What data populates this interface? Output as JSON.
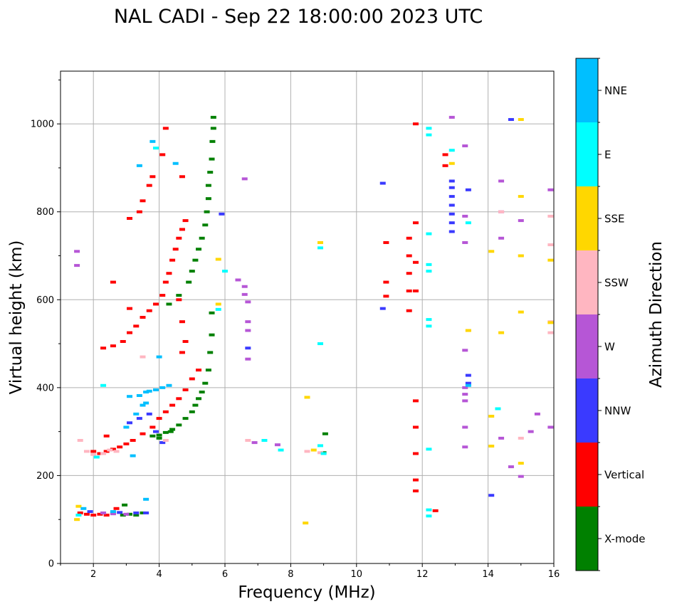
{
  "chart_data": {
    "type": "scatter",
    "title": "NAL CADI - Sep 22 18:00:00 2023 UTC",
    "xlabel": "Frequency (MHz)",
    "ylabel": "Virtual height (km)",
    "xlim": [
      1,
      16
    ],
    "ylim": [
      0,
      1120
    ],
    "xticks": [
      2,
      4,
      6,
      8,
      10,
      12,
      14,
      16
    ],
    "yticks": [
      0,
      200,
      400,
      600,
      800,
      1000
    ],
    "xtick_labels": [
      "2",
      "4",
      "6",
      "8",
      "10",
      "12",
      "14",
      "16"
    ],
    "ytick_labels": [
      "0",
      "200",
      "400",
      "600",
      "800",
      "1000"
    ],
    "grid": true,
    "colorbar": {
      "label": "Azimuth Direction",
      "categories": [
        {
          "name": "X-mode",
          "color": "#008000"
        },
        {
          "name": "Vertical",
          "color": "#ff0000"
        },
        {
          "name": "NNW",
          "color": "#3a3aff"
        },
        {
          "name": "W",
          "color": "#b656d6"
        },
        {
          "name": "SSW",
          "color": "#ffb6c1"
        },
        {
          "name": "SSE",
          "color": "#ffd700"
        },
        {
          "name": "E",
          "color": "#00ffff"
        },
        {
          "name": "NNE",
          "color": "#00bfff"
        }
      ]
    },
    "series": [
      {
        "name": "X-mode",
        "color": "#008000",
        "points": [
          [
            2.9,
            110
          ],
          [
            3.1,
            112
          ],
          [
            3.3,
            110
          ],
          [
            3.5,
            115
          ],
          [
            2.95,
            133
          ],
          [
            3.8,
            290
          ],
          [
            4.0,
            292
          ],
          [
            4.2,
            298
          ],
          [
            4.4,
            305
          ],
          [
            4.6,
            315
          ],
          [
            4.8,
            330
          ],
          [
            5.0,
            345
          ],
          [
            5.1,
            360
          ],
          [
            5.2,
            375
          ],
          [
            5.3,
            390
          ],
          [
            5.4,
            410
          ],
          [
            5.5,
            440
          ],
          [
            5.55,
            480
          ],
          [
            5.6,
            520
          ],
          [
            5.6,
            570
          ],
          [
            4.3,
            590
          ],
          [
            4.6,
            610
          ],
          [
            4.9,
            640
          ],
          [
            5.0,
            665
          ],
          [
            5.1,
            690
          ],
          [
            5.2,
            715
          ],
          [
            5.3,
            740
          ],
          [
            5.4,
            770
          ],
          [
            5.45,
            800
          ],
          [
            5.5,
            830
          ],
          [
            5.5,
            860
          ],
          [
            5.55,
            890
          ],
          [
            5.6,
            920
          ],
          [
            5.62,
            960
          ],
          [
            5.65,
            990
          ],
          [
            5.65,
            1015
          ],
          [
            9.05,
            295
          ],
          [
            9.0,
            252
          ],
          [
            4.0,
            285
          ],
          [
            4.35,
            300
          ]
        ]
      },
      {
        "name": "Vertical",
        "color": "#ff0000",
        "points": [
          [
            1.6,
            115
          ],
          [
            1.8,
            112
          ],
          [
            2.0,
            110
          ],
          [
            2.2,
            112
          ],
          [
            2.4,
            110
          ],
          [
            2.6,
            115
          ],
          [
            2.7,
            125
          ],
          [
            2.0,
            255
          ],
          [
            2.2,
            250
          ],
          [
            2.4,
            255
          ],
          [
            2.6,
            260
          ],
          [
            2.8,
            265
          ],
          [
            3.0,
            272
          ],
          [
            3.2,
            280
          ],
          [
            3.5,
            295
          ],
          [
            3.8,
            310
          ],
          [
            4.0,
            330
          ],
          [
            4.2,
            345
          ],
          [
            4.4,
            360
          ],
          [
            4.6,
            375
          ],
          [
            4.8,
            395
          ],
          [
            5.0,
            420
          ],
          [
            5.2,
            440
          ],
          [
            2.3,
            490
          ],
          [
            2.6,
            495
          ],
          [
            2.9,
            505
          ],
          [
            3.1,
            525
          ],
          [
            3.3,
            540
          ],
          [
            3.5,
            560
          ],
          [
            3.7,
            575
          ],
          [
            3.9,
            590
          ],
          [
            4.1,
            610
          ],
          [
            4.2,
            640
          ],
          [
            4.3,
            660
          ],
          [
            4.4,
            690
          ],
          [
            4.5,
            715
          ],
          [
            4.6,
            740
          ],
          [
            4.7,
            760
          ],
          [
            4.8,
            780
          ],
          [
            3.4,
            800
          ],
          [
            3.5,
            825
          ],
          [
            3.7,
            860
          ],
          [
            3.8,
            880
          ],
          [
            4.1,
            930
          ],
          [
            4.2,
            990
          ],
          [
            3.1,
            785
          ],
          [
            4.6,
            600
          ],
          [
            4.7,
            550
          ],
          [
            4.8,
            505
          ],
          [
            4.7,
            480
          ],
          [
            2.6,
            640
          ],
          [
            11.6,
            575
          ],
          [
            11.6,
            620
          ],
          [
            11.6,
            660
          ],
          [
            11.6,
            700
          ],
          [
            11.6,
            740
          ],
          [
            10.9,
            640
          ],
          [
            10.9,
            730
          ],
          [
            10.9,
            608
          ],
          [
            11.8,
            620
          ],
          [
            11.8,
            685
          ],
          [
            11.8,
            775
          ],
          [
            11.8,
            370
          ],
          [
            11.8,
            310
          ],
          [
            11.8,
            250
          ],
          [
            11.8,
            190
          ],
          [
            11.8,
            165
          ],
          [
            11.8,
            1000
          ],
          [
            12.4,
            120
          ],
          [
            12.7,
            930
          ],
          [
            12.7,
            905
          ],
          [
            3.1,
            580
          ],
          [
            2.4,
            290
          ],
          [
            4.7,
            880
          ]
        ]
      },
      {
        "name": "NNW",
        "color": "#3a3aff",
        "points": [
          [
            1.9,
            118
          ],
          [
            2.8,
            116
          ],
          [
            3.3,
            115
          ],
          [
            3.6,
            115
          ],
          [
            3.1,
            320
          ],
          [
            3.4,
            330
          ],
          [
            3.7,
            340
          ],
          [
            3.9,
            300
          ],
          [
            4.1,
            275
          ],
          [
            12.9,
            755
          ],
          [
            12.9,
            775
          ],
          [
            12.9,
            795
          ],
          [
            12.9,
            815
          ],
          [
            12.9,
            835
          ],
          [
            12.9,
            855
          ],
          [
            12.9,
            870
          ],
          [
            13.4,
            410
          ],
          [
            13.4,
            428
          ],
          [
            13.4,
            850
          ],
          [
            10.8,
            580
          ],
          [
            10.8,
            865
          ],
          [
            14.1,
            155
          ],
          [
            14.7,
            1010
          ],
          [
            6.7,
            490
          ],
          [
            5.9,
            795
          ]
        ]
      },
      {
        "name": "W",
        "color": "#b656d6",
        "points": [
          [
            1.5,
            710
          ],
          [
            1.5,
            678
          ],
          [
            2.3,
            115
          ],
          [
            2.6,
            113
          ],
          [
            3.0,
            112
          ],
          [
            6.4,
            645
          ],
          [
            6.6,
            630
          ],
          [
            6.6,
            612
          ],
          [
            6.7,
            595
          ],
          [
            6.7,
            550
          ],
          [
            6.7,
            530
          ],
          [
            6.7,
            465
          ],
          [
            6.9,
            275
          ],
          [
            7.6,
            270
          ],
          [
            6.6,
            875
          ],
          [
            12.9,
            1015
          ],
          [
            13.3,
            950
          ],
          [
            13.3,
            790
          ],
          [
            13.3,
            730
          ],
          [
            13.3,
            485
          ],
          [
            13.3,
            400
          ],
          [
            13.3,
            385
          ],
          [
            13.3,
            370
          ],
          [
            13.3,
            310
          ],
          [
            13.3,
            265
          ],
          [
            14.4,
            870
          ],
          [
            14.4,
            800
          ],
          [
            14.4,
            740
          ],
          [
            14.4,
            285
          ],
          [
            14.7,
            220
          ],
          [
            15.0,
            780
          ],
          [
            15.0,
            198
          ],
          [
            15.3,
            300
          ],
          [
            15.5,
            340
          ],
          [
            15.9,
            850
          ],
          [
            15.9,
            310
          ]
        ]
      },
      {
        "name": "SSW",
        "color": "#ffb6c1",
        "points": [
          [
            1.6,
            280
          ],
          [
            1.8,
            255
          ],
          [
            2.0,
            248
          ],
          [
            2.3,
            250
          ],
          [
            2.5,
            258
          ],
          [
            2.7,
            255
          ],
          [
            3.5,
            470
          ],
          [
            4.2,
            280
          ],
          [
            6.7,
            280
          ],
          [
            8.5,
            255
          ],
          [
            8.9,
            252
          ],
          [
            13.4,
            530
          ],
          [
            14.4,
            800
          ],
          [
            15.0,
            700
          ],
          [
            15.0,
            285
          ],
          [
            15.9,
            790
          ],
          [
            15.9,
            725
          ],
          [
            15.9,
            550
          ],
          [
            15.9,
            525
          ]
        ]
      },
      {
        "name": "SSE",
        "color": "#ffd700",
        "points": [
          [
            1.55,
            130
          ],
          [
            1.5,
            100
          ],
          [
            8.9,
            730
          ],
          [
            8.5,
            378
          ],
          [
            8.45,
            92
          ],
          [
            8.7,
            258
          ],
          [
            5.8,
            590
          ],
          [
            5.8,
            692
          ],
          [
            14.1,
            710
          ],
          [
            14.1,
            335
          ],
          [
            14.1,
            267
          ],
          [
            14.4,
            525
          ],
          [
            15.0,
            1010
          ],
          [
            15.0,
            835
          ],
          [
            15.0,
            700
          ],
          [
            15.0,
            572
          ],
          [
            15.0,
            228
          ],
          [
            15.9,
            690
          ],
          [
            15.9,
            548
          ],
          [
            13.4,
            530
          ],
          [
            12.9,
            910
          ]
        ]
      },
      {
        "name": "E",
        "color": "#00ffff",
        "points": [
          [
            1.55,
            110
          ],
          [
            2.1,
            242
          ],
          [
            2.3,
            405
          ],
          [
            3.9,
            945
          ],
          [
            8.9,
            500
          ],
          [
            8.9,
            718
          ],
          [
            9.0,
            250
          ],
          [
            8.9,
            268
          ],
          [
            7.2,
            280
          ],
          [
            7.7,
            258
          ],
          [
            12.2,
            990
          ],
          [
            12.2,
            975
          ],
          [
            12.2,
            750
          ],
          [
            12.2,
            680
          ],
          [
            12.2,
            665
          ],
          [
            12.2,
            555
          ],
          [
            12.2,
            540
          ],
          [
            12.2,
            260
          ],
          [
            12.2,
            122
          ],
          [
            12.2,
            108
          ],
          [
            12.9,
            940
          ],
          [
            13.4,
            775
          ],
          [
            14.3,
            352
          ],
          [
            5.8,
            578
          ],
          [
            6.0,
            665
          ]
        ]
      },
      {
        "name": "NNE",
        "color": "#00bfff",
        "points": [
          [
            1.7,
            125
          ],
          [
            2.6,
            118
          ],
          [
            3.1,
            380
          ],
          [
            3.4,
            382
          ],
          [
            3.6,
            390
          ],
          [
            3.7,
            392
          ],
          [
            3.9,
            395
          ],
          [
            4.1,
            400
          ],
          [
            4.3,
            405
          ],
          [
            3.5,
            360
          ],
          [
            3.3,
            340
          ],
          [
            3.0,
            310
          ],
          [
            3.6,
            365
          ],
          [
            4.0,
            470
          ],
          [
            3.4,
            905
          ],
          [
            3.8,
            960
          ],
          [
            3.6,
            146
          ],
          [
            3.2,
            245
          ],
          [
            13.4,
            405
          ],
          [
            4.5,
            910
          ]
        ]
      }
    ]
  }
}
